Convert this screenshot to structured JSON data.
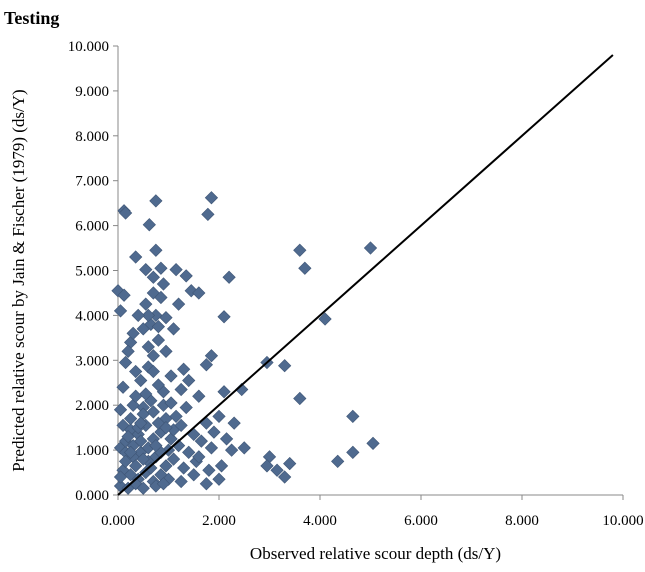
{
  "chart_data": {
    "type": "scatter",
    "title": "Testing",
    "xlabel": "Observed relative scour depth (ds/Y)",
    "ylabel": "Predicted relative scour by Jain & Fischer  (1979) (ds/Y)",
    "xlim": [
      0,
      10
    ],
    "ylim": [
      0,
      10
    ],
    "xticks": [
      "0.000",
      "2.000",
      "4.000",
      "6.000",
      "8.000",
      "10.000"
    ],
    "yticks": [
      "0.000",
      "1.000",
      "2.000",
      "3.000",
      "4.000",
      "5.000",
      "6.000",
      "7.000",
      "8.000",
      "9.000",
      "10.000"
    ],
    "grid": false,
    "legend": "none",
    "marker_color": "#4F6A8F",
    "line_color": "#000000",
    "reference_line": {
      "x": [
        0,
        9.8
      ],
      "y": [
        0,
        9.8
      ]
    },
    "series": [
      {
        "points": [
          [
            0.12,
            6.33
          ],
          [
            0.15,
            6.28
          ],
          [
            0.75,
            6.55
          ],
          [
            1.85,
            6.62
          ],
          [
            1.78,
            6.25
          ],
          [
            0.62,
            6.02
          ],
          [
            0.35,
            5.3
          ],
          [
            0.75,
            5.45
          ],
          [
            3.6,
            5.45
          ],
          [
            3.7,
            5.05
          ],
          [
            5.0,
            5.5
          ],
          [
            1.15,
            5.02
          ],
          [
            1.35,
            4.88
          ],
          [
            2.2,
            4.85
          ],
          [
            0.0,
            4.55
          ],
          [
            0.12,
            4.45
          ],
          [
            0.05,
            4.1
          ],
          [
            0.7,
            4.5
          ],
          [
            0.85,
            4.4
          ],
          [
            0.55,
            4.25
          ],
          [
            0.75,
            4.0
          ],
          [
            0.65,
            3.8
          ],
          [
            0.5,
            3.7
          ],
          [
            0.95,
            3.95
          ],
          [
            1.2,
            4.25
          ],
          [
            1.45,
            4.55
          ],
          [
            1.6,
            4.5
          ],
          [
            2.1,
            3.97
          ],
          [
            4.1,
            3.92
          ],
          [
            1.1,
            3.7
          ],
          [
            0.8,
            3.45
          ],
          [
            0.6,
            3.3
          ],
          [
            0.7,
            3.1
          ],
          [
            0.25,
            3.4
          ],
          [
            0.15,
            2.95
          ],
          [
            0.35,
            2.75
          ],
          [
            0.45,
            2.55
          ],
          [
            0.6,
            2.85
          ],
          [
            1.3,
            2.8
          ],
          [
            1.4,
            2.55
          ],
          [
            1.85,
            3.1
          ],
          [
            1.75,
            2.9
          ],
          [
            2.95,
            2.95
          ],
          [
            3.3,
            2.88
          ],
          [
            0.9,
            2.3
          ],
          [
            1.25,
            2.35
          ],
          [
            1.6,
            2.2
          ],
          [
            2.1,
            2.3
          ],
          [
            2.45,
            2.35
          ],
          [
            3.6,
            2.15
          ],
          [
            0.3,
            2.0
          ],
          [
            0.5,
            1.95
          ],
          [
            0.7,
            1.85
          ],
          [
            0.95,
            1.7
          ],
          [
            1.15,
            1.75
          ],
          [
            1.35,
            1.95
          ],
          [
            1.75,
            1.6
          ],
          [
            2.0,
            1.75
          ],
          [
            2.3,
            1.6
          ],
          [
            4.65,
            1.75
          ],
          [
            0.1,
            1.55
          ],
          [
            0.25,
            1.45
          ],
          [
            0.4,
            1.35
          ],
          [
            0.55,
            1.55
          ],
          [
            0.7,
            1.25
          ],
          [
            0.85,
            1.4
          ],
          [
            1.05,
            1.25
          ],
          [
            1.2,
            1.1
          ],
          [
            1.5,
            1.35
          ],
          [
            1.65,
            1.2
          ],
          [
            1.85,
            1.05
          ],
          [
            2.25,
            1.0
          ],
          [
            2.5,
            1.05
          ],
          [
            3.0,
            0.85
          ],
          [
            3.4,
            0.7
          ],
          [
            4.35,
            0.75
          ],
          [
            4.65,
            0.95
          ],
          [
            5.05,
            1.15
          ],
          [
            0.05,
            1.05
          ],
          [
            0.15,
            0.95
          ],
          [
            0.3,
            0.85
          ],
          [
            0.45,
            0.95
          ],
          [
            0.6,
            0.75
          ],
          [
            0.75,
            0.85
          ],
          [
            0.95,
            0.65
          ],
          [
            1.1,
            0.8
          ],
          [
            1.3,
            0.6
          ],
          [
            1.55,
            0.75
          ],
          [
            1.8,
            0.55
          ],
          [
            2.05,
            0.65
          ],
          [
            2.95,
            0.65
          ],
          [
            3.15,
            0.55
          ],
          [
            3.3,
            0.4
          ],
          [
            0.1,
            0.55
          ],
          [
            0.25,
            0.45
          ],
          [
            0.4,
            0.35
          ],
          [
            0.55,
            0.5
          ],
          [
            0.7,
            0.3
          ],
          [
            0.85,
            0.45
          ],
          [
            1.0,
            0.35
          ],
          [
            1.25,
            0.3
          ],
          [
            1.5,
            0.45
          ],
          [
            1.75,
            0.25
          ],
          [
            2.0,
            0.35
          ],
          [
            0.05,
            0.2
          ],
          [
            0.2,
            0.15
          ],
          [
            0.35,
            0.25
          ],
          [
            0.5,
            0.15
          ],
          [
            0.75,
            0.2
          ],
          [
            0.9,
            0.25
          ],
          [
            0.15,
            1.2
          ],
          [
            0.3,
            1.1
          ],
          [
            0.45,
            1.2
          ],
          [
            0.6,
            1.05
          ],
          [
            0.2,
            1.3
          ],
          [
            0.4,
            1.5
          ],
          [
            0.8,
            1.6
          ],
          [
            0.5,
            1.8
          ],
          [
            0.25,
            1.7
          ],
          [
            0.65,
            2.1
          ],
          [
            0.8,
            2.45
          ],
          [
            0.55,
            2.25
          ],
          [
            0.35,
            2.2
          ],
          [
            0.9,
            2.0
          ],
          [
            1.05,
            2.65
          ],
          [
            0.7,
            2.75
          ],
          [
            0.95,
            3.2
          ],
          [
            0.8,
            3.75
          ],
          [
            0.6,
            4.0
          ],
          [
            0.9,
            4.7
          ],
          [
            0.7,
            4.85
          ],
          [
            0.55,
            5.02
          ],
          [
            0.85,
            5.05
          ],
          [
            0.4,
            4.0
          ],
          [
            0.3,
            3.6
          ],
          [
            0.2,
            3.2
          ],
          [
            0.1,
            2.4
          ],
          [
            0.05,
            1.9
          ],
          [
            1.0,
            1.0
          ],
          [
            1.1,
            1.45
          ],
          [
            1.4,
            0.95
          ],
          [
            1.6,
            0.85
          ],
          [
            1.9,
            1.4
          ],
          [
            2.15,
            1.25
          ],
          [
            0.65,
            0.6
          ],
          [
            0.85,
            0.95
          ],
          [
            0.35,
            0.65
          ],
          [
            0.15,
            0.75
          ],
          [
            0.05,
            0.4
          ],
          [
            0.45,
            1.6
          ],
          [
            1.05,
            2.05
          ],
          [
            1.25,
            1.55
          ],
          [
            0.75,
            1.1
          ],
          [
            0.5,
            0.8
          ],
          [
            0.25,
            0.95
          ],
          [
            0.95,
            1.5
          ]
        ]
      }
    ]
  }
}
